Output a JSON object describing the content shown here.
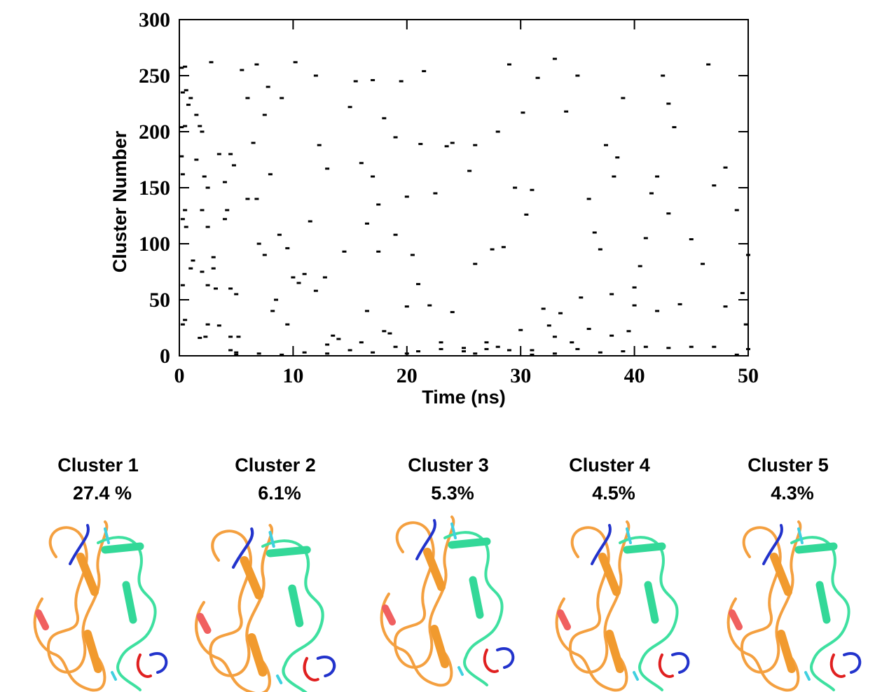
{
  "chart_data": {
    "type": "scatter",
    "xlabel": "Time (ns)",
    "ylabel": "Cluster Number",
    "color": "#000000",
    "xlim": [
      0,
      50
    ],
    "ylim": [
      0,
      300
    ],
    "xticks": [
      0,
      10,
      20,
      30,
      40,
      50
    ],
    "yticks": [
      0,
      50,
      100,
      150,
      200,
      250,
      300
    ],
    "x": [
      0.2,
      0.5,
      0.3,
      0.6,
      0.8,
      1.0,
      0.2,
      0.5,
      0.2,
      0.3,
      0.5,
      0.3,
      0.6,
      1,
      1.2,
      0.3,
      0.5,
      0.3,
      1.5,
      1.8,
      2,
      1.5,
      2.2,
      2.5,
      2,
      2.8,
      2.5,
      2,
      2.5,
      3,
      3,
      3.2,
      2.5,
      3.5,
      2.3,
      1.8,
      4,
      3.5,
      4.2,
      4,
      4.5,
      5,
      4.5,
      5.2,
      4.5,
      5,
      4.5,
      4.8,
      5.5,
      6,
      6,
      6.5,
      6.8,
      6.8,
      7,
      7.5,
      7.5,
      7.8,
      8,
      8.5,
      8.2,
      8.8,
      9,
      9.5,
      9.5,
      10,
      10.5,
      10.2,
      11,
      11.5,
      12,
      12,
      12.3,
      12.8,
      13,
      13.5,
      14,
      13,
      14.5,
      15,
      15.5,
      16,
      16.5,
      16.5,
      17,
      17,
      17.5,
      17.5,
      18,
      18.5,
      19,
      19,
      19.5,
      20,
      20,
      20.5,
      21,
      21.5,
      21.2,
      22,
      22.5,
      23,
      23.5,
      24,
      24,
      25,
      25.5,
      26,
      26,
      27,
      27.5,
      28,
      28.5,
      29,
      29.5,
      30,
      30.5,
      30.2,
      31,
      31.5,
      31,
      32,
      32.5,
      33,
      33.5,
      34,
      34.5,
      35,
      35.3,
      36,
      36,
      36.5,
      37,
      37.5,
      38,
      38.2,
      38.5,
      39,
      39.5,
      40,
      40,
      40.5,
      41,
      41.5,
      42,
      42,
      42.5,
      43,
      43,
      43.5,
      44,
      45,
      46,
      46.5,
      47,
      48,
      48,
      49,
      49.5,
      49.8,
      50,
      50,
      5,
      7,
      9,
      11,
      13,
      15,
      17,
      19,
      21,
      23,
      25,
      27,
      29,
      31,
      33,
      35,
      37,
      39,
      41,
      43,
      45,
      47,
      49,
      26,
      28,
      20,
      16,
      18,
      33,
      38
    ],
    "y": [
      257,
      258,
      235,
      237,
      224,
      230,
      204,
      205,
      178,
      162,
      130,
      122,
      115,
      78,
      85,
      63,
      32,
      28,
      215,
      205,
      200,
      175,
      160,
      150,
      130,
      262,
      115,
      75,
      63,
      88,
      78,
      60,
      28,
      27,
      17,
      16,
      155,
      180,
      130,
      122,
      60,
      55,
      17,
      17,
      5,
      3,
      180,
      170,
      255,
      140,
      230,
      190,
      140,
      260,
      100,
      90,
      215,
      240,
      162,
      50,
      40,
      108,
      230,
      96,
      28,
      70,
      65,
      262,
      73,
      120,
      58,
      250,
      188,
      70,
      167,
      18,
      15,
      10,
      93,
      222,
      245,
      172,
      40,
      118,
      246,
      160,
      135,
      93,
      212,
      20,
      195,
      108,
      245,
      142,
      44,
      90,
      64,
      254,
      189,
      45,
      145,
      12,
      187,
      39,
      190,
      4,
      165,
      82,
      188,
      12,
      95,
      200,
      97,
      260,
      150,
      23,
      126,
      217,
      5,
      248,
      148,
      42,
      27,
      265,
      38,
      218,
      12,
      250,
      52,
      140,
      24,
      110,
      95,
      188,
      55,
      160,
      177,
      230,
      22,
      61,
      45,
      80,
      105,
      145,
      160,
      40,
      250,
      225,
      127,
      204,
      46,
      104,
      82,
      260,
      152,
      168,
      44,
      130,
      56,
      28,
      90,
      6,
      1,
      2,
      1,
      3,
      2,
      5,
      3,
      8,
      4,
      6,
      7,
      6,
      5,
      1,
      2,
      6,
      3,
      4,
      8,
      7,
      8,
      8,
      1,
      2,
      8,
      2,
      12,
      22,
      17,
      18
    ]
  },
  "clusters": [
    {
      "name": "Cluster 1",
      "share": "27.4 %"
    },
    {
      "name": "Cluster 2",
      "share": "6.1%"
    },
    {
      "name": "Cluster 3",
      "share": "5.3%"
    },
    {
      "name": "Cluster 4",
      "share": "4.5%"
    },
    {
      "name": "Cluster 5",
      "share": "4.3%"
    }
  ]
}
